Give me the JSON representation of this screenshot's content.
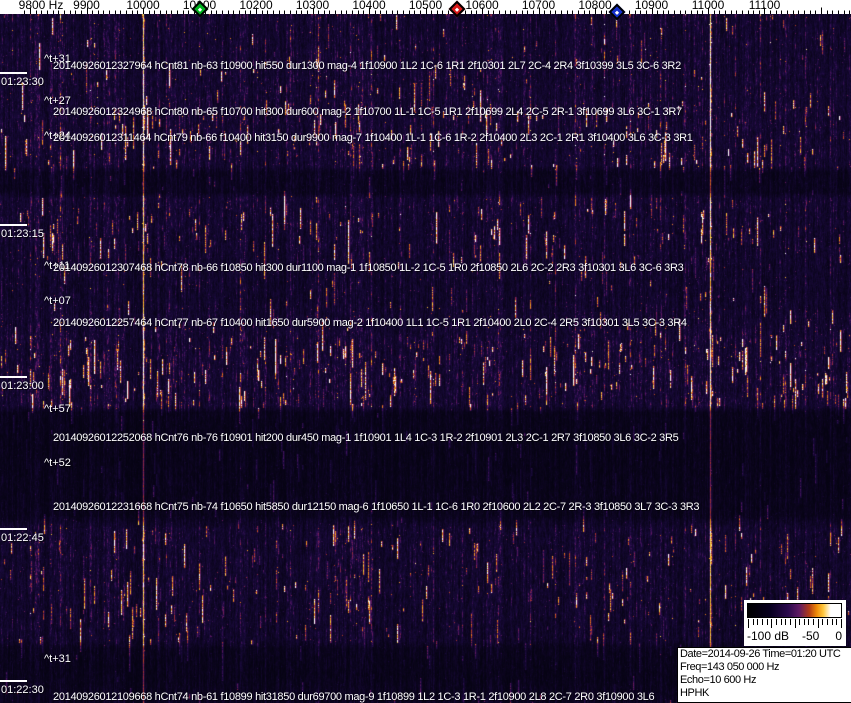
{
  "freq_axis": {
    "labels": [
      {
        "text": "9800 Hz",
        "freq": 9800
      },
      {
        "text": "9900",
        "freq": 9900
      },
      {
        "text": "10000",
        "freq": 10000
      },
      {
        "text": "10100",
        "freq": 10100
      },
      {
        "text": "10200",
        "freq": 10200
      },
      {
        "text": "10300",
        "freq": 10300
      },
      {
        "text": "10400",
        "freq": 10400
      },
      {
        "text": "10500",
        "freq": 10500
      },
      {
        "text": "10600",
        "freq": 10600
      },
      {
        "text": "10700",
        "freq": 10700
      },
      {
        "text": "10800",
        "freq": 10800
      },
      {
        "text": "10900",
        "freq": 10900
      },
      {
        "text": "11000",
        "freq": 11000
      },
      {
        "text": "11100",
        "freq": 11100
      }
    ],
    "markers": [
      {
        "name": "marker-diamond-green",
        "color": "#00b41e",
        "freq": 10100
      },
      {
        "name": "marker-diamond-red",
        "color": "#d81818",
        "freq": 10556
      },
      {
        "name": "marker-diamond-blue",
        "color": "#1430cc",
        "freq": 10839
      }
    ]
  },
  "time_axis": {
    "labels": [
      "01:23:30",
      "01:23:15",
      "01:23:00",
      "01:22:45",
      "01:22:30"
    ]
  },
  "time_markers": [
    "^t+31",
    "^t+27",
    "^t+24",
    "^t+11",
    "^t+07",
    "^t+57",
    "^t+52",
    "^t+31"
  ],
  "echo_lines": [
    "20140926012327964 hCnt81 nb-63 f10900 hit550 dur1300 mag-4 1f10900 1L2 1C-6 1R1 2f10301 2L7 2C-4 2R4 3f10399 3L5 3C-6 3R2",
    "20140926012324968 hCnt80 nb-65 f10700 hit300 dur600 mag-2 1f10700 1L-1 1C-5 1R1 2f10699 2L4 2C-5 2R-1 3f10699 3L6 3C-1 3R7",
    "20140926012311464 hCnt79 nb-66 f10400 hit3150 dur9900 mag-7 1f10400 1L-1 1C-6 1R-2 2f10400 2L3 2C-1 2R1 3f10400 3L6 3C-3 3R1",
    "20140926012307468 hCnt78 nb-66 f10850 hit300 dur1100 mag-1 1f10850 1L-2 1C-5 1R0 2f10850 2L6 2C-2 2R3 3f10301 3L6 3C-6 3R3",
    "20140926012257464 hCnt77 nb-67 f10400 hit1650 dur5900 mag-2 1f10400 1L1 1C-5 1R1 2f10400 2L0 2C-4 2R5 3f10301 3L5 3C-3 3R4",
    "20140926012252068 hCnt76 nb-76 f10901 hit200 dur450 mag-1 1f10901 1L4 1C-3 1R-2 2f10901 2L3 2C-1 2R7 3f10850 3L6 3C-2 3R5",
    "20140926012231668 hCnt75 nb-74 f10650 hit5850 dur12150 mag-6 1f10650 1L-1 1C-6 1R0 2f10600 2L2 2C-7 2R-3 3f10850 3L7 3C-3 3R3",
    "20140926012109668 hCnt74 nb-61 f10899 hit31850 dur69700 mag-9 1f10899 1L2 1C-3 1R-1 2f10900 2L8 2C-7 2R0 3f10900 3L6"
  ],
  "legend": {
    "db_labels": [
      "-100 dB",
      "-50",
      "0"
    ]
  },
  "info_box": {
    "lines": [
      "Date=2014-09-26 Time=01:20 UTC",
      "Freq=143 050 000 Hz",
      "Echo=10 600 Hz",
      "HPHK"
    ]
  },
  "colors": {
    "axis_background": "#ffffff",
    "axis_text": "#000000",
    "overlay_text": "#ffffff",
    "spectrogram_background": "#1a0a3c",
    "spectrogram_streak": "#e87818",
    "spectrogram_peak_line": "#ffd23c",
    "legend_background": "#ffffff",
    "info_border": "#000000"
  }
}
